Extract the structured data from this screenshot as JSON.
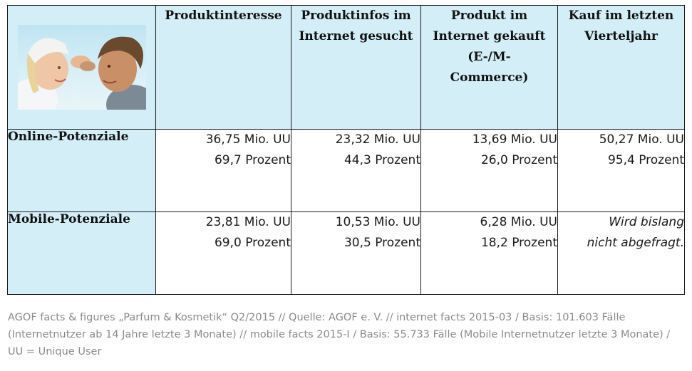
{
  "table": {
    "headers": [
      [
        "Produktinteresse"
      ],
      [
        "Produktinfos im",
        "Internet gesucht"
      ],
      [
        "Produkt im",
        "Internet gekauft",
        "(E-/M-",
        "Commerce)"
      ],
      [
        "Kauf im letzten",
        "Vierteljahr"
      ]
    ],
    "rows": [
      {
        "label": "Online-Potenziale",
        "cells": [
          [
            "36,75 Mio. UU",
            "69,7 Prozent"
          ],
          [
            "23,32 Mio. UU",
            "44,3 Prozent"
          ],
          [
            "13,69 Mio. UU",
            "26,0 Prozent"
          ],
          [
            "50,27 Mio. UU",
            "95,4 Prozent"
          ]
        ]
      },
      {
        "label": "Mobile-Potenziale",
        "cells": [
          [
            "23,81 Mio. UU",
            "69,0 Prozent"
          ],
          [
            "10,53 Mio. UU",
            "30,5 Prozent"
          ],
          [
            "6,28 Mio. UU",
            "18,2 Prozent"
          ],
          [
            "Wird bislang",
            "nicht abgefragt."
          ]
        ]
      }
    ]
  },
  "caption": "AGOF facts & figures „Parfum & Kosmetik“ Q2/2015 // Quelle: AGOF e. V. // internet facts 2015-03 / Basis: 101.603 Fälle (Internetnutzer ab 14 Jahre letzte 3 Monate) // mobile facts 2015-I / Basis: 55.733 Fälle (Mobile Internetnutzer letzte 3 Monate) / UU = Unique User",
  "colors": {
    "header_bg": "#d3eef7",
    "border": "#1a1a1a",
    "caption_text": "#8a8a8a"
  },
  "image": {
    "subject": "couple-photo"
  }
}
